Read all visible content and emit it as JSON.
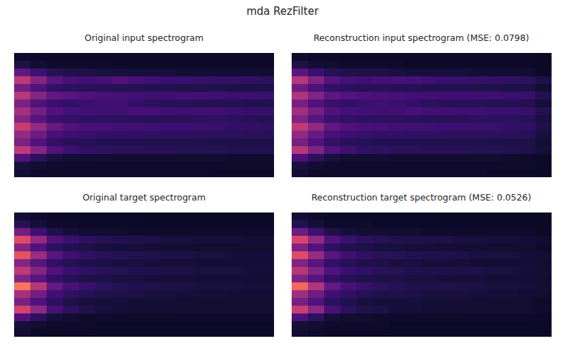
{
  "title": "mda RezFilter",
  "chart_data": [
    {
      "type": "heatmap",
      "title": "Original input spectrogram",
      "tick_labels": false,
      "zlim": [
        0,
        1.2
      ],
      "cells": [
        [
          0.1,
          0.09,
          0.09,
          0.09,
          0.09,
          0.09,
          0.09,
          0.09,
          0.09,
          0.09,
          0.09,
          0.09,
          0.09,
          0.09,
          0.09,
          0.09
        ],
        [
          0.15,
          0.12,
          0.1,
          0.1,
          0.1,
          0.1,
          0.09,
          0.09,
          0.09,
          0.09,
          0.09,
          0.09,
          0.09,
          0.09,
          0.09,
          0.09
        ],
        [
          0.35,
          0.25,
          0.18,
          0.16,
          0.15,
          0.14,
          0.14,
          0.13,
          0.13,
          0.13,
          0.12,
          0.12,
          0.12,
          0.12,
          0.12,
          0.11
        ],
        [
          0.62,
          0.45,
          0.32,
          0.28,
          0.26,
          0.27,
          0.3,
          0.28,
          0.25,
          0.24,
          0.24,
          0.23,
          0.22,
          0.22,
          0.21,
          0.2
        ],
        [
          0.4,
          0.3,
          0.22,
          0.2,
          0.19,
          0.19,
          0.18,
          0.18,
          0.17,
          0.17,
          0.16,
          0.16,
          0.16,
          0.15,
          0.15,
          0.15
        ],
        [
          0.6,
          0.45,
          0.35,
          0.32,
          0.3,
          0.28,
          0.27,
          0.26,
          0.25,
          0.26,
          0.27,
          0.26,
          0.25,
          0.24,
          0.24,
          0.23
        ],
        [
          0.42,
          0.3,
          0.24,
          0.22,
          0.24,
          0.26,
          0.25,
          0.22,
          0.2,
          0.19,
          0.19,
          0.18,
          0.18,
          0.18,
          0.17,
          0.17
        ],
        [
          0.55,
          0.4,
          0.3,
          0.27,
          0.26,
          0.25,
          0.26,
          0.28,
          0.27,
          0.26,
          0.25,
          0.25,
          0.25,
          0.24,
          0.23,
          0.23
        ],
        [
          0.45,
          0.32,
          0.24,
          0.22,
          0.21,
          0.2,
          0.2,
          0.2,
          0.19,
          0.19,
          0.19,
          0.2,
          0.21,
          0.2,
          0.19,
          0.18
        ],
        [
          0.65,
          0.5,
          0.36,
          0.3,
          0.28,
          0.27,
          0.26,
          0.25,
          0.25,
          0.24,
          0.24,
          0.23,
          0.23,
          0.22,
          0.22,
          0.21
        ],
        [
          0.5,
          0.38,
          0.28,
          0.25,
          0.23,
          0.22,
          0.22,
          0.22,
          0.21,
          0.21,
          0.21,
          0.2,
          0.2,
          0.2,
          0.19,
          0.19
        ],
        [
          0.42,
          0.3,
          0.22,
          0.19,
          0.18,
          0.17,
          0.17,
          0.17,
          0.16,
          0.16,
          0.16,
          0.16,
          0.15,
          0.15,
          0.15,
          0.15
        ],
        [
          0.62,
          0.45,
          0.3,
          0.25,
          0.22,
          0.21,
          0.2,
          0.2,
          0.19,
          0.19,
          0.18,
          0.18,
          0.18,
          0.17,
          0.17,
          0.17
        ],
        [
          0.3,
          0.2,
          0.14,
          0.12,
          0.12,
          0.11,
          0.11,
          0.11,
          0.11,
          0.11,
          0.11,
          0.11,
          0.11,
          0.1,
          0.1,
          0.1
        ],
        [
          0.14,
          0.11,
          0.1,
          0.1,
          0.1,
          0.1,
          0.1,
          0.1,
          0.1,
          0.1,
          0.1,
          0.1,
          0.1,
          0.1,
          0.1,
          0.1
        ],
        [
          0.12,
          0.1,
          0.1,
          0.1,
          0.1,
          0.1,
          0.1,
          0.1,
          0.1,
          0.1,
          0.1,
          0.1,
          0.09,
          0.09,
          0.09,
          0.09
        ]
      ]
    },
    {
      "type": "heatmap",
      "title": "Reconstruction input spectrogram (MSE: 0.0798)",
      "tick_labels": false,
      "zlim": [
        0,
        1.2
      ],
      "cells": [
        [
          0.1,
          0.09,
          0.09,
          0.09,
          0.09,
          0.09,
          0.09,
          0.09,
          0.09,
          0.09,
          0.09,
          0.09,
          0.09,
          0.09,
          0.09,
          0.08
        ],
        [
          0.15,
          0.12,
          0.11,
          0.1,
          0.1,
          0.1,
          0.1,
          0.09,
          0.09,
          0.09,
          0.09,
          0.09,
          0.09,
          0.09,
          0.09,
          0.08
        ],
        [
          0.33,
          0.24,
          0.18,
          0.16,
          0.15,
          0.15,
          0.14,
          0.13,
          0.13,
          0.13,
          0.13,
          0.12,
          0.12,
          0.12,
          0.11,
          0.09
        ],
        [
          0.6,
          0.44,
          0.31,
          0.27,
          0.26,
          0.27,
          0.28,
          0.27,
          0.25,
          0.24,
          0.23,
          0.23,
          0.22,
          0.21,
          0.2,
          0.15
        ],
        [
          0.39,
          0.29,
          0.22,
          0.2,
          0.19,
          0.19,
          0.18,
          0.18,
          0.17,
          0.17,
          0.17,
          0.16,
          0.16,
          0.15,
          0.15,
          0.12
        ],
        [
          0.58,
          0.44,
          0.34,
          0.31,
          0.29,
          0.28,
          0.27,
          0.26,
          0.26,
          0.26,
          0.26,
          0.25,
          0.25,
          0.24,
          0.23,
          0.17
        ],
        [
          0.41,
          0.3,
          0.24,
          0.22,
          0.23,
          0.25,
          0.24,
          0.22,
          0.2,
          0.19,
          0.19,
          0.19,
          0.18,
          0.18,
          0.17,
          0.13
        ],
        [
          0.54,
          0.4,
          0.3,
          0.27,
          0.26,
          0.25,
          0.26,
          0.27,
          0.26,
          0.26,
          0.25,
          0.25,
          0.24,
          0.24,
          0.23,
          0.17
        ],
        [
          0.44,
          0.32,
          0.24,
          0.22,
          0.21,
          0.2,
          0.2,
          0.2,
          0.19,
          0.19,
          0.19,
          0.2,
          0.2,
          0.2,
          0.19,
          0.14
        ],
        [
          0.63,
          0.49,
          0.35,
          0.3,
          0.28,
          0.27,
          0.26,
          0.25,
          0.25,
          0.24,
          0.24,
          0.23,
          0.23,
          0.22,
          0.21,
          0.16
        ],
        [
          0.49,
          0.37,
          0.28,
          0.25,
          0.23,
          0.22,
          0.22,
          0.21,
          0.21,
          0.21,
          0.2,
          0.2,
          0.2,
          0.19,
          0.19,
          0.14
        ],
        [
          0.41,
          0.3,
          0.22,
          0.19,
          0.18,
          0.17,
          0.17,
          0.17,
          0.16,
          0.16,
          0.16,
          0.16,
          0.15,
          0.15,
          0.15,
          0.12
        ],
        [
          0.6,
          0.44,
          0.3,
          0.25,
          0.22,
          0.21,
          0.2,
          0.2,
          0.19,
          0.19,
          0.19,
          0.18,
          0.18,
          0.17,
          0.16,
          0.13
        ],
        [
          0.29,
          0.2,
          0.14,
          0.12,
          0.12,
          0.12,
          0.11,
          0.11,
          0.11,
          0.11,
          0.11,
          0.11,
          0.11,
          0.1,
          0.1,
          0.09
        ],
        [
          0.14,
          0.11,
          0.1,
          0.1,
          0.1,
          0.1,
          0.1,
          0.1,
          0.1,
          0.1,
          0.1,
          0.1,
          0.1,
          0.1,
          0.1,
          0.09
        ],
        [
          0.12,
          0.1,
          0.1,
          0.1,
          0.1,
          0.1,
          0.1,
          0.1,
          0.1,
          0.1,
          0.1,
          0.1,
          0.09,
          0.09,
          0.09,
          0.08
        ]
      ]
    },
    {
      "type": "heatmap",
      "title": "Original target spectrogram",
      "tick_labels": false,
      "zlim": [
        0,
        1.2
      ],
      "cells": [
        [
          0.12,
          0.1,
          0.09,
          0.09,
          0.09,
          0.09,
          0.09,
          0.09,
          0.08,
          0.08,
          0.08,
          0.08,
          0.08,
          0.08,
          0.08,
          0.08
        ],
        [
          0.18,
          0.13,
          0.1,
          0.1,
          0.09,
          0.09,
          0.09,
          0.09,
          0.09,
          0.09,
          0.09,
          0.09,
          0.09,
          0.09,
          0.09,
          0.09
        ],
        [
          0.4,
          0.25,
          0.16,
          0.13,
          0.12,
          0.11,
          0.11,
          0.1,
          0.1,
          0.1,
          0.1,
          0.1,
          0.1,
          0.1,
          0.1,
          0.1
        ],
        [
          0.72,
          0.5,
          0.3,
          0.24,
          0.2,
          0.18,
          0.17,
          0.16,
          0.15,
          0.14,
          0.14,
          0.13,
          0.13,
          0.13,
          0.12,
          0.12
        ],
        [
          0.45,
          0.3,
          0.2,
          0.17,
          0.15,
          0.14,
          0.13,
          0.13,
          0.12,
          0.12,
          0.12,
          0.11,
          0.11,
          0.11,
          0.11,
          0.11
        ],
        [
          0.75,
          0.52,
          0.32,
          0.25,
          0.21,
          0.19,
          0.18,
          0.17,
          0.16,
          0.15,
          0.15,
          0.14,
          0.14,
          0.13,
          0.13,
          0.13
        ],
        [
          0.45,
          0.32,
          0.22,
          0.18,
          0.16,
          0.15,
          0.14,
          0.14,
          0.13,
          0.13,
          0.13,
          0.12,
          0.12,
          0.12,
          0.12,
          0.12
        ],
        [
          0.62,
          0.45,
          0.3,
          0.24,
          0.21,
          0.19,
          0.18,
          0.17,
          0.16,
          0.15,
          0.15,
          0.14,
          0.14,
          0.14,
          0.13,
          0.13
        ],
        [
          0.45,
          0.32,
          0.22,
          0.18,
          0.16,
          0.15,
          0.14,
          0.14,
          0.13,
          0.13,
          0.13,
          0.12,
          0.12,
          0.12,
          0.12,
          0.12
        ],
        [
          0.85,
          0.6,
          0.36,
          0.28,
          0.23,
          0.2,
          0.18,
          0.17,
          0.16,
          0.15,
          0.15,
          0.14,
          0.14,
          0.14,
          0.13,
          0.13
        ],
        [
          0.55,
          0.4,
          0.26,
          0.21,
          0.18,
          0.16,
          0.15,
          0.15,
          0.14,
          0.14,
          0.13,
          0.13,
          0.13,
          0.12,
          0.12,
          0.12
        ],
        [
          0.42,
          0.3,
          0.2,
          0.16,
          0.14,
          0.13,
          0.13,
          0.12,
          0.12,
          0.12,
          0.12,
          0.11,
          0.11,
          0.11,
          0.11,
          0.11
        ],
        [
          0.68,
          0.48,
          0.28,
          0.2,
          0.16,
          0.14,
          0.13,
          0.12,
          0.12,
          0.12,
          0.11,
          0.11,
          0.11,
          0.11,
          0.11,
          0.11
        ],
        [
          0.3,
          0.2,
          0.13,
          0.11,
          0.1,
          0.1,
          0.1,
          0.1,
          0.1,
          0.1,
          0.1,
          0.1,
          0.1,
          0.1,
          0.1,
          0.1
        ],
        [
          0.13,
          0.11,
          0.1,
          0.1,
          0.1,
          0.09,
          0.09,
          0.09,
          0.09,
          0.09,
          0.09,
          0.09,
          0.09,
          0.09,
          0.09,
          0.09
        ],
        [
          0.11,
          0.09,
          0.09,
          0.09,
          0.09,
          0.09,
          0.09,
          0.09,
          0.09,
          0.09,
          0.09,
          0.09,
          0.09,
          0.09,
          0.09,
          0.09
        ]
      ]
    },
    {
      "type": "heatmap",
      "title": "Reconstruction target spectrogram (MSE: 0.0526)",
      "tick_labels": false,
      "zlim": [
        0,
        1.2
      ],
      "cells": [
        [
          0.12,
          0.1,
          0.09,
          0.09,
          0.09,
          0.09,
          0.09,
          0.09,
          0.09,
          0.08,
          0.08,
          0.08,
          0.08,
          0.08,
          0.08,
          0.08
        ],
        [
          0.17,
          0.13,
          0.1,
          0.1,
          0.1,
          0.09,
          0.09,
          0.09,
          0.09,
          0.09,
          0.09,
          0.09,
          0.09,
          0.09,
          0.09,
          0.08
        ],
        [
          0.38,
          0.25,
          0.16,
          0.13,
          0.12,
          0.12,
          0.11,
          0.11,
          0.1,
          0.1,
          0.1,
          0.1,
          0.1,
          0.1,
          0.1,
          0.09
        ],
        [
          0.7,
          0.49,
          0.3,
          0.24,
          0.2,
          0.18,
          0.17,
          0.16,
          0.15,
          0.15,
          0.14,
          0.14,
          0.13,
          0.13,
          0.12,
          0.11
        ],
        [
          0.44,
          0.3,
          0.2,
          0.17,
          0.15,
          0.14,
          0.14,
          0.13,
          0.13,
          0.12,
          0.12,
          0.12,
          0.11,
          0.11,
          0.11,
          0.1
        ],
        [
          0.73,
          0.51,
          0.32,
          0.25,
          0.21,
          0.19,
          0.18,
          0.17,
          0.16,
          0.16,
          0.15,
          0.14,
          0.14,
          0.14,
          0.13,
          0.12
        ],
        [
          0.44,
          0.32,
          0.22,
          0.18,
          0.16,
          0.15,
          0.14,
          0.14,
          0.13,
          0.13,
          0.13,
          0.12,
          0.12,
          0.12,
          0.12,
          0.11
        ],
        [
          0.6,
          0.44,
          0.3,
          0.24,
          0.21,
          0.19,
          0.18,
          0.17,
          0.16,
          0.16,
          0.15,
          0.15,
          0.14,
          0.14,
          0.13,
          0.12
        ],
        [
          0.44,
          0.32,
          0.22,
          0.18,
          0.16,
          0.15,
          0.15,
          0.14,
          0.14,
          0.13,
          0.13,
          0.13,
          0.12,
          0.12,
          0.12,
          0.11
        ],
        [
          0.82,
          0.59,
          0.36,
          0.28,
          0.23,
          0.2,
          0.18,
          0.17,
          0.16,
          0.16,
          0.15,
          0.15,
          0.14,
          0.14,
          0.13,
          0.12
        ],
        [
          0.53,
          0.39,
          0.26,
          0.21,
          0.18,
          0.16,
          0.16,
          0.15,
          0.14,
          0.14,
          0.14,
          0.13,
          0.13,
          0.13,
          0.12,
          0.11
        ],
        [
          0.41,
          0.3,
          0.2,
          0.16,
          0.14,
          0.13,
          0.13,
          0.13,
          0.12,
          0.12,
          0.12,
          0.12,
          0.11,
          0.11,
          0.11,
          0.1
        ],
        [
          0.66,
          0.47,
          0.28,
          0.2,
          0.16,
          0.15,
          0.13,
          0.13,
          0.12,
          0.12,
          0.12,
          0.11,
          0.11,
          0.11,
          0.11,
          0.1
        ],
        [
          0.29,
          0.2,
          0.13,
          0.11,
          0.11,
          0.1,
          0.1,
          0.1,
          0.1,
          0.1,
          0.1,
          0.1,
          0.1,
          0.1,
          0.1,
          0.09
        ],
        [
          0.13,
          0.11,
          0.1,
          0.1,
          0.1,
          0.1,
          0.09,
          0.09,
          0.09,
          0.09,
          0.09,
          0.09,
          0.09,
          0.09,
          0.09,
          0.09
        ],
        [
          0.11,
          0.1,
          0.09,
          0.09,
          0.09,
          0.09,
          0.09,
          0.09,
          0.09,
          0.09,
          0.09,
          0.09,
          0.09,
          0.09,
          0.09,
          0.08
        ]
      ]
    }
  ]
}
